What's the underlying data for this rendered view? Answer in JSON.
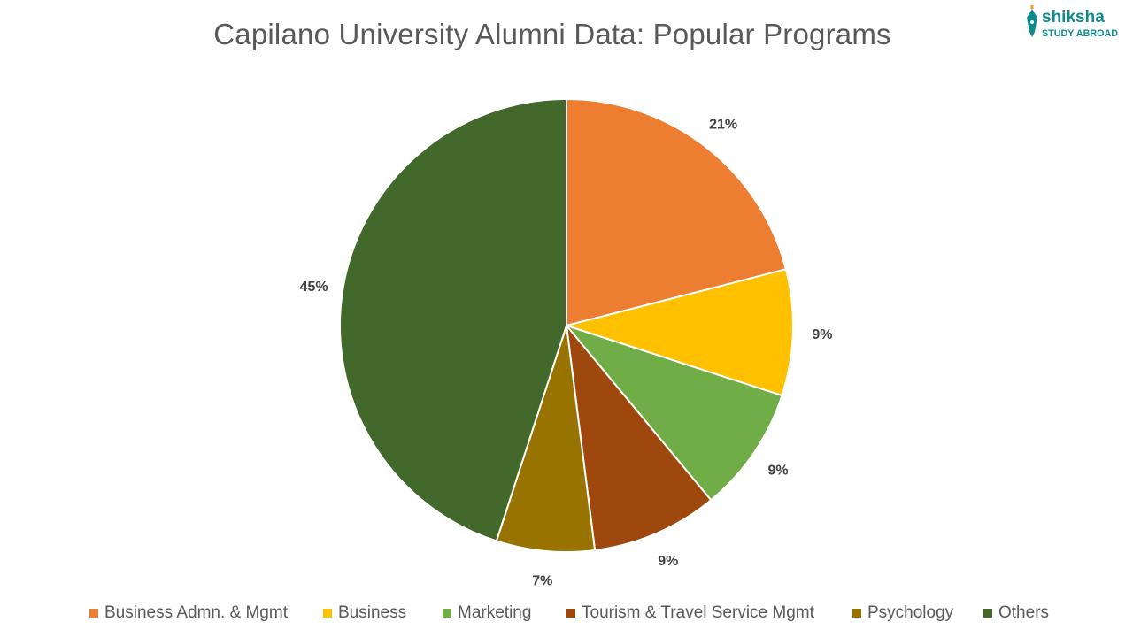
{
  "chart_data": {
    "type": "pie",
    "title": "Capilano University Alumni Data: Popular Programs",
    "categories": [
      "Business Admn. & Mgmt",
      "Business",
      "Marketing",
      "Tourism & Travel Service Mgmt",
      "Psychology",
      "Others"
    ],
    "values": [
      21,
      9,
      9,
      9,
      7,
      45
    ],
    "labels": [
      "21%",
      "9%",
      "9%",
      "9%",
      "7%",
      "45%"
    ],
    "colors": [
      "#ED7D31",
      "#FFC000",
      "#70AD47",
      "#9E480E",
      "#997300",
      "#43682B"
    ],
    "legend_position": "bottom",
    "start_angle": "12 o'clock, clockwise"
  },
  "logo": {
    "brand": "shiksha",
    "tagline": "STUDY ABROAD",
    "color": "#0E8C8C"
  }
}
